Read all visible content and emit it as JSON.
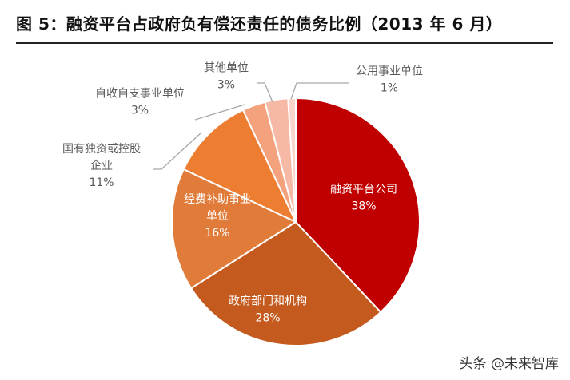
{
  "header": {
    "title": "图 5：融资平台占政府负有偿还责任的债务比例（2013 年 6 月）"
  },
  "watermark": {
    "text": "头条 @未来智库"
  },
  "colors": {
    "slice_1": "#C00000",
    "slice_2": "#C55A1F",
    "slice_3": "#E07B39",
    "slice_4": "#ED7D31",
    "slice_5": "#F4A27D",
    "slice_6": "#F6B9A6",
    "slice_7": "#F9D6CC",
    "leader": "#A6A6A6",
    "label_dark": "#595959",
    "label_light": "#FFFFFF"
  },
  "chart_data": {
    "type": "pie",
    "title": "融资平台占政府负有偿还责任的债务比例（2013 年 6 月）",
    "start": "12 o'clock",
    "direction": "clockwise",
    "slices": [
      {
        "label": "融资平台公司",
        "label_lines": [
          "融资平台公司"
        ],
        "value": 38,
        "pct_text": "38%"
      },
      {
        "label": "政府部门和机构",
        "label_lines": [
          "政府部门和机构"
        ],
        "value": 28,
        "pct_text": "28%"
      },
      {
        "label": "经费补助事业单位",
        "label_lines": [
          "经费补助事业",
          "单位"
        ],
        "value": 16,
        "pct_text": "16%"
      },
      {
        "label": "国有独资或控股企业",
        "label_lines": [
          "国有独资或控股",
          "企业"
        ],
        "value": 11,
        "pct_text": "11%"
      },
      {
        "label": "自收自支事业单位",
        "label_lines": [
          "自收自支事业单位"
        ],
        "value": 3,
        "pct_text": "3%"
      },
      {
        "label": "其他单位",
        "label_lines": [
          "其他单位"
        ],
        "value": 3,
        "pct_text": "3%"
      },
      {
        "label": "公用事业单位",
        "label_lines": [
          "公用事业单位"
        ],
        "value": 1,
        "pct_text": "1%"
      }
    ]
  }
}
